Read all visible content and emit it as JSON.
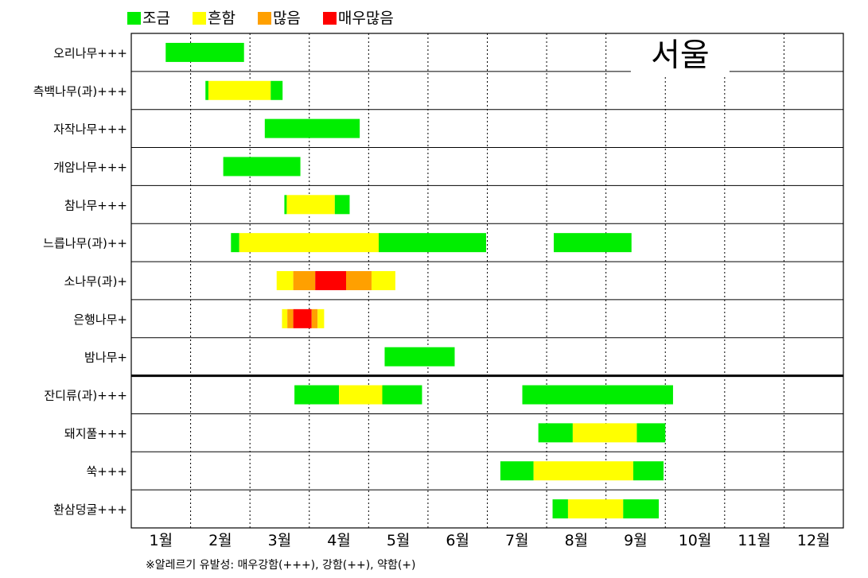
{
  "chart_data": {
    "type": "gantt",
    "title": "",
    "panel_label": "서울",
    "legend": [
      {
        "label": "조금",
        "color": "#00ee00"
      },
      {
        "label": "흔함",
        "color": "#ffff00"
      },
      {
        "label": "많음",
        "color": "#ffa000"
      },
      {
        "label": "매우많음",
        "color": "#ff0000"
      }
    ],
    "months": [
      "1월",
      "2월",
      "3월",
      "4월",
      "5월",
      "6월",
      "7월",
      "8월",
      "9월",
      "10월",
      "11월",
      "12월"
    ],
    "x_unit": "month (1 = Jan 1, 13 = Dec 31)",
    "xlim": [
      1,
      13
    ],
    "rows": [
      {
        "label": "오리나무+++",
        "segments": [
          {
            "start": 1.58,
            "end": 2.9,
            "level": "조금"
          }
        ]
      },
      {
        "label": "측백나무(과)+++",
        "segments": [
          {
            "start": 2.25,
            "end": 2.3,
            "level": "조금"
          },
          {
            "start": 2.3,
            "end": 3.35,
            "level": "흔함"
          },
          {
            "start": 3.35,
            "end": 3.55,
            "level": "조금"
          }
        ]
      },
      {
        "label": "자작나무+++",
        "segments": [
          {
            "start": 3.25,
            "end": 4.85,
            "level": "조금"
          }
        ]
      },
      {
        "label": "개암나무+++",
        "segments": [
          {
            "start": 2.55,
            "end": 3.85,
            "level": "조금"
          }
        ]
      },
      {
        "label": "참나무+++",
        "segments": [
          {
            "start": 3.58,
            "end": 3.62,
            "level": "조금"
          },
          {
            "start": 3.62,
            "end": 4.43,
            "level": "흔함"
          },
          {
            "start": 4.43,
            "end": 4.68,
            "level": "조금"
          }
        ]
      },
      {
        "label": "느릅나무(과)++",
        "segments": [
          {
            "start": 2.68,
            "end": 2.82,
            "level": "조금"
          },
          {
            "start": 2.82,
            "end": 5.17,
            "level": "흔함"
          },
          {
            "start": 5.17,
            "end": 6.98,
            "level": "조금"
          },
          {
            "start": 8.12,
            "end": 9.43,
            "level": "조금"
          }
        ]
      },
      {
        "label": "소나무(과)+",
        "segments": [
          {
            "start": 3.45,
            "end": 3.73,
            "level": "흔함"
          },
          {
            "start": 3.73,
            "end": 4.1,
            "level": "많음"
          },
          {
            "start": 4.1,
            "end": 4.62,
            "level": "매우많음"
          },
          {
            "start": 4.62,
            "end": 5.05,
            "level": "많음"
          },
          {
            "start": 5.05,
            "end": 5.45,
            "level": "흔함"
          }
        ]
      },
      {
        "label": "은행나무+",
        "segments": [
          {
            "start": 3.54,
            "end": 3.63,
            "level": "흔함"
          },
          {
            "start": 3.63,
            "end": 3.73,
            "level": "많음"
          },
          {
            "start": 3.73,
            "end": 4.04,
            "level": "매우많음"
          },
          {
            "start": 4.04,
            "end": 4.14,
            "level": "많음"
          },
          {
            "start": 4.14,
            "end": 4.25,
            "level": "흔함"
          }
        ]
      },
      {
        "label": "밤나무+",
        "segments": [
          {
            "start": 5.27,
            "end": 6.45,
            "level": "조금"
          }
        ]
      },
      {
        "label": "잔디류(과)+++",
        "segments": [
          {
            "start": 3.75,
            "end": 4.5,
            "level": "조금"
          },
          {
            "start": 4.5,
            "end": 5.23,
            "level": "흔함"
          },
          {
            "start": 5.23,
            "end": 5.9,
            "level": "조금"
          },
          {
            "start": 7.59,
            "end": 10.13,
            "level": "조금"
          }
        ]
      },
      {
        "label": "돼지풀+++",
        "segments": [
          {
            "start": 7.86,
            "end": 8.44,
            "level": "조금"
          },
          {
            "start": 8.44,
            "end": 9.52,
            "level": "흔함"
          },
          {
            "start": 9.52,
            "end": 10.0,
            "level": "조금"
          }
        ]
      },
      {
        "label": "쑥+++",
        "segments": [
          {
            "start": 7.22,
            "end": 7.78,
            "level": "조금"
          },
          {
            "start": 7.78,
            "end": 9.46,
            "level": "흔함"
          },
          {
            "start": 9.46,
            "end": 9.97,
            "level": "조금"
          }
        ]
      },
      {
        "label": "환삼덩굴+++",
        "segments": [
          {
            "start": 8.1,
            "end": 8.36,
            "level": "조금"
          },
          {
            "start": 8.36,
            "end": 9.29,
            "level": "흔함"
          },
          {
            "start": 9.29,
            "end": 9.89,
            "level": "조금"
          }
        ]
      }
    ],
    "group_divider_after_row": 8,
    "grid": "vertical dotted at month boundaries",
    "footnote": "※알레르기 유발성: 매우강함(+++), 강함(++), 약함(+)"
  }
}
